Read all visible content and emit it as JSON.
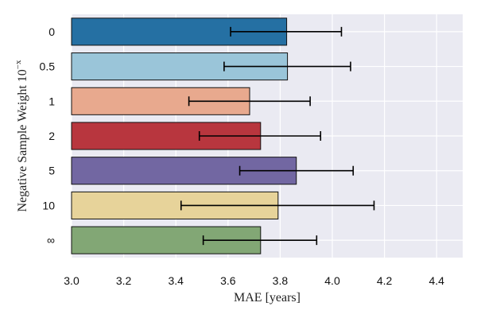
{
  "chart_data": {
    "type": "bar",
    "orientation": "horizontal",
    "title": "",
    "xlabel": "MAE [years]",
    "ylabel": "Negative Sample Weight 10",
    "ylabel_superscript": "−x",
    "xlim": [
      3.0,
      4.5
    ],
    "xticks": [
      "3.0",
      "3.2",
      "3.4",
      "3.6",
      "3.8",
      "4.0",
      "4.2",
      "4.4"
    ],
    "grid": true,
    "categories": [
      "0",
      "0.5",
      "1",
      "2",
      "5",
      "10",
      "∞"
    ],
    "values": [
      3.825,
      3.828,
      3.683,
      3.725,
      3.862,
      3.792,
      3.725
    ],
    "error_low": [
      3.61,
      3.585,
      3.45,
      3.49,
      3.645,
      3.42,
      3.505
    ],
    "error_high": [
      4.035,
      4.07,
      3.915,
      3.955,
      4.08,
      4.16,
      3.94
    ],
    "colors": [
      "#2570a3",
      "#9ac5d9",
      "#e8a98e",
      "#b8363e",
      "#7267a2",
      "#e7d39a",
      "#82a775"
    ]
  }
}
